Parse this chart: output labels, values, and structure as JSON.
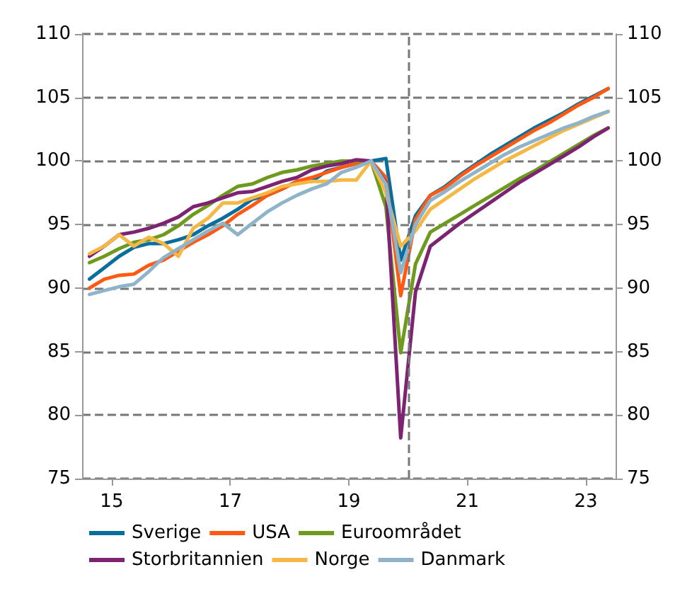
{
  "chart_data": {
    "type": "line",
    "x": [
      14.625,
      14.875,
      15.125,
      15.375,
      15.625,
      15.875,
      16.125,
      16.375,
      16.625,
      16.875,
      17.125,
      17.375,
      17.625,
      17.875,
      18.125,
      18.375,
      18.625,
      18.875,
      19.125,
      19.375,
      19.625,
      19.875,
      20.125,
      20.375,
      20.625,
      20.875,
      21.125,
      21.375,
      21.625,
      21.875,
      22.125,
      22.375,
      22.625,
      22.875,
      23.125,
      23.375
    ],
    "series": [
      {
        "name": "Sverige",
        "color": "#0a6e9c",
        "values": [
          90.7,
          91.6,
          92.5,
          93.2,
          93.5,
          93.5,
          93.8,
          94.2,
          94.9,
          95.5,
          96.2,
          97.0,
          97.3,
          97.8,
          98.4,
          98.4,
          99.2,
          99.5,
          99.8,
          100,
          100.2,
          92.2,
          95.7,
          97.3,
          98.0,
          98.9,
          99.7,
          100.5,
          101.2,
          101.9,
          102.6,
          103.2,
          103.8,
          104.5,
          105.1,
          105.7
        ]
      },
      {
        "name": "USA",
        "color": "#ff5a14",
        "values": [
          90.0,
          90.7,
          91.0,
          91.1,
          91.8,
          92.2,
          92.9,
          93.6,
          94.2,
          94.9,
          95.8,
          96.5,
          97.3,
          97.8,
          98.4,
          98.7,
          99.1,
          99.5,
          99.8,
          100,
          98.7,
          89.4,
          95.4,
          97.3,
          97.9,
          98.8,
          99.6,
          100.3,
          101.0,
          101.7,
          102.4,
          103.0,
          103.7,
          104.4,
          105.0,
          105.7
        ]
      },
      {
        "name": "Euroområdet",
        "color": "#6e9a1e",
        "values": [
          92.0,
          92.5,
          93.1,
          93.6,
          93.8,
          94.2,
          94.9,
          95.8,
          96.5,
          97.3,
          98.0,
          98.2,
          98.7,
          99.1,
          99.3,
          99.6,
          99.8,
          100,
          100,
          100,
          96.4,
          84.9,
          91.9,
          94.4,
          95.1,
          95.8,
          96.5,
          97.2,
          97.9,
          98.6,
          99.2,
          99.9,
          100.6,
          101.3,
          102.0,
          102.6
        ]
      },
      {
        "name": "Storbritannien",
        "color": "#7c2472",
        "values": [
          92.5,
          93.3,
          94.2,
          94.4,
          94.7,
          95.1,
          95.6,
          96.4,
          96.7,
          97.1,
          97.5,
          97.6,
          98.0,
          98.4,
          98.7,
          99.3,
          99.6,
          99.8,
          100.1,
          100,
          98.3,
          78.2,
          89.7,
          93.3,
          94.2,
          95.1,
          95.9,
          96.7,
          97.5,
          98.3,
          99.0,
          99.7,
          100.4,
          101.1,
          101.9,
          102.6
        ]
      },
      {
        "name": "Norge",
        "color": "#f5b845",
        "values": [
          92.7,
          93.3,
          94.2,
          93.3,
          94.0,
          93.5,
          92.5,
          94.7,
          95.5,
          96.7,
          96.7,
          97.1,
          97.5,
          98.0,
          98.2,
          98.4,
          98.4,
          98.5,
          98.5,
          100,
          97.5,
          93.3,
          94.5,
          96.2,
          97.0,
          97.8,
          98.6,
          99.3,
          100.0,
          100.6,
          101.2,
          101.8,
          102.4,
          102.9,
          103.4,
          103.9
        ]
      },
      {
        "name": "Danmark",
        "color": "#8fb4c9",
        "values": [
          89.5,
          89.8,
          90.1,
          90.3,
          91.3,
          92.4,
          93.1,
          93.8,
          94.5,
          95.1,
          94.2,
          95.1,
          96.0,
          96.7,
          97.3,
          97.8,
          98.2,
          99.1,
          99.5,
          100,
          98.2,
          91.2,
          95.0,
          96.9,
          97.6,
          98.4,
          99.1,
          99.8,
          100.5,
          101.1,
          101.6,
          102.1,
          102.6,
          103.0,
          103.5,
          103.9
        ]
      }
    ],
    "xlim": [
      14.5,
      23.5
    ],
    "xticks": [
      15,
      17,
      19,
      21,
      23
    ],
    "ylim": [
      75,
      110
    ],
    "yticks": [
      75,
      80,
      85,
      90,
      95,
      100,
      105,
      110
    ],
    "y2lim": [
      75,
      110
    ],
    "y2ticks": [
      75,
      80,
      85,
      90,
      95,
      100,
      105,
      110
    ],
    "ref_lines": [
      {
        "axis": "x",
        "value": 20,
        "color": "#777777",
        "line_style": "dashed"
      }
    ],
    "grid": "y",
    "legend": "bottom",
    "marker": "none",
    "line_style": "solid"
  }
}
